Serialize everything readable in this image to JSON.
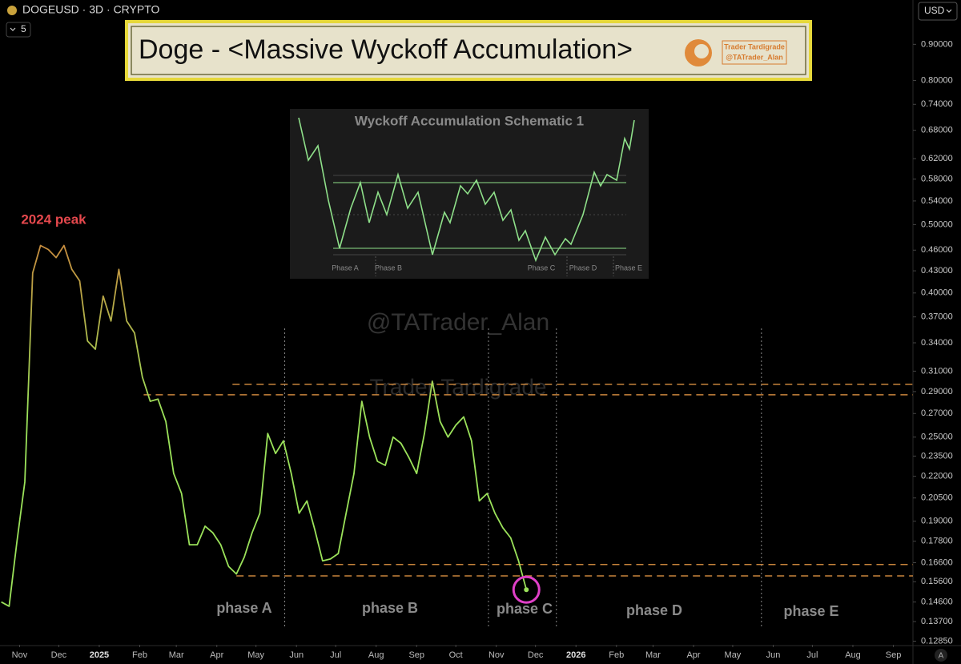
{
  "header": {
    "symbol": "DOGEUSD · 3D · CRYPTO",
    "interval_count": "5",
    "currency": "USD",
    "scale_mode": "A"
  },
  "banner": {
    "title": "Doge - <Massive Wyckoff Accumulation>",
    "brand": "Trader Tardigrade",
    "handle": "@TATrader_Alan"
  },
  "watermarks": [
    "@TATrader_Alan",
    "Trader Tardigrade"
  ],
  "inset": {
    "title": "Wyckoff Accumulation Schematic 1",
    "phases": [
      "Phase A",
      "Phase B",
      "Phase C",
      "Phase D",
      "Phase E"
    ]
  },
  "chart_data": {
    "type": "line",
    "log_scale": true,
    "grid": false,
    "xlim": [
      "2024-10-17",
      "2026-09-16"
    ],
    "xticks": [
      {
        "value": "2024-11-01",
        "label": "Nov"
      },
      {
        "value": "2024-12-01",
        "label": "Dec"
      },
      {
        "value": "2025-01-01",
        "label": "2025"
      },
      {
        "value": "2025-02-01",
        "label": "Feb"
      },
      {
        "value": "2025-03-01",
        "label": "Mar"
      },
      {
        "value": "2025-04-01",
        "label": "Apr"
      },
      {
        "value": "2025-05-01",
        "label": "May"
      },
      {
        "value": "2025-06-01",
        "label": "Jun"
      },
      {
        "value": "2025-07-01",
        "label": "Jul"
      },
      {
        "value": "2025-08-01",
        "label": "Aug"
      },
      {
        "value": "2025-09-01",
        "label": "Sep"
      },
      {
        "value": "2025-10-01",
        "label": "Oct"
      },
      {
        "value": "2025-11-01",
        "label": "Nov"
      },
      {
        "value": "2025-12-01",
        "label": "Dec"
      },
      {
        "value": "2026-01-01",
        "label": "2026"
      },
      {
        "value": "2026-02-01",
        "label": "Feb"
      },
      {
        "value": "2026-03-01",
        "label": "Mar"
      },
      {
        "value": "2026-04-01",
        "label": "Apr"
      },
      {
        "value": "2026-05-01",
        "label": "May"
      },
      {
        "value": "2026-06-01",
        "label": "Jun"
      },
      {
        "value": "2026-07-01",
        "label": "Jul"
      },
      {
        "value": "2026-08-01",
        "label": "Aug"
      },
      {
        "value": "2026-09-01",
        "label": "Sep"
      }
    ],
    "ylim": [
      0.127,
      1.04
    ],
    "yticks": [
      {
        "value": 0.9,
        "label": "0.90000"
      },
      {
        "value": 0.8,
        "label": "0.80000"
      },
      {
        "value": 0.74,
        "label": "0.74000"
      },
      {
        "value": 0.68,
        "label": "0.68000"
      },
      {
        "value": 0.62,
        "label": "0.62000"
      },
      {
        "value": 0.58,
        "label": "0.58000"
      },
      {
        "value": 0.54,
        "label": "0.54000"
      },
      {
        "value": 0.5,
        "label": "0.50000"
      },
      {
        "value": 0.46,
        "label": "0.46000"
      },
      {
        "value": 0.43,
        "label": "0.43000"
      },
      {
        "value": 0.4,
        "label": "0.40000"
      },
      {
        "value": 0.37,
        "label": "0.37000"
      },
      {
        "value": 0.34,
        "label": "0.34000"
      },
      {
        "value": 0.31,
        "label": "0.31000"
      },
      {
        "value": 0.29,
        "label": "0.29000"
      },
      {
        "value": 0.27,
        "label": "0.27000"
      },
      {
        "value": 0.25,
        "label": "0.25000"
      },
      {
        "value": 0.235,
        "label": "0.23500"
      },
      {
        "value": 0.22,
        "label": "0.22000"
      },
      {
        "value": 0.205,
        "label": "0.20500"
      },
      {
        "value": 0.19,
        "label": "0.19000"
      },
      {
        "value": 0.178,
        "label": "0.17800"
      },
      {
        "value": 0.166,
        "label": "0.16600"
      },
      {
        "value": 0.156,
        "label": "0.15600"
      },
      {
        "value": 0.146,
        "label": "0.14600"
      },
      {
        "value": 0.137,
        "label": "0.13700"
      },
      {
        "value": 0.1285,
        "label": "0.12850"
      }
    ],
    "series": [
      {
        "colors": [
          "#c9853c",
          "#9be25a"
        ],
        "x": [
          "2024-10-18",
          "2024-10-24",
          "2024-10-30",
          "2024-11-05",
          "2024-11-11",
          "2024-11-17",
          "2024-11-23",
          "2024-11-29",
          "2024-12-05",
          "2024-12-11",
          "2024-12-17",
          "2024-12-23",
          "2024-12-29",
          "2025-01-04",
          "2025-01-10",
          "2025-01-16",
          "2025-01-22",
          "2025-01-28",
          "2025-02-03",
          "2025-02-09",
          "2025-02-15",
          "2025-02-21",
          "2025-02-27",
          "2025-03-05",
          "2025-03-11",
          "2025-03-17",
          "2025-03-23",
          "2025-03-29",
          "2025-04-04",
          "2025-04-10",
          "2025-04-16",
          "2025-04-22",
          "2025-04-28",
          "2025-05-04",
          "2025-05-10",
          "2025-05-16",
          "2025-05-22",
          "2025-05-28",
          "2025-06-03",
          "2025-06-09",
          "2025-06-15",
          "2025-06-21",
          "2025-06-27",
          "2025-07-03",
          "2025-07-09",
          "2025-07-15",
          "2025-07-21",
          "2025-07-27",
          "2025-08-02",
          "2025-08-08",
          "2025-08-14",
          "2025-08-20",
          "2025-08-26",
          "2025-09-01",
          "2025-09-07",
          "2025-09-13",
          "2025-09-19",
          "2025-09-25",
          "2025-10-01",
          "2025-10-07",
          "2025-10-13",
          "2025-10-19",
          "2025-10-25",
          "2025-10-31",
          "2025-11-06",
          "2025-11-12",
          "2025-11-18",
          "2025-11-24"
        ],
        "values": [
          0.146,
          0.144,
          0.178,
          0.216,
          0.427,
          0.467,
          0.461,
          0.449,
          0.467,
          0.432,
          0.416,
          0.342,
          0.333,
          0.396,
          0.365,
          0.432,
          0.365,
          0.351,
          0.304,
          0.281,
          0.283,
          0.263,
          0.222,
          0.208,
          0.176,
          0.176,
          0.187,
          0.183,
          0.176,
          0.164,
          0.16,
          0.169,
          0.183,
          0.195,
          0.253,
          0.237,
          0.247,
          0.222,
          0.195,
          0.203,
          0.185,
          0.167,
          0.168,
          0.171,
          0.195,
          0.222,
          0.281,
          0.25,
          0.231,
          0.228,
          0.25,
          0.245,
          0.234,
          0.222,
          0.253,
          0.3,
          0.263,
          0.25,
          0.26,
          0.267,
          0.247,
          0.203,
          0.208,
          0.195,
          0.186,
          0.18,
          0.167,
          0.152
        ]
      }
    ],
    "levels": [
      {
        "value": 0.297,
        "from": "2025-04-13",
        "color": "#c9853c"
      },
      {
        "value": 0.287,
        "from": "2025-02-04",
        "color": "#c9853c"
      },
      {
        "value": 0.165,
        "from": "2025-06-22",
        "color": "#c9853c"
      },
      {
        "value": 0.159,
        "from": "2025-04-16",
        "color": "#c9853c"
      }
    ],
    "phase_dividers": [
      "2025-05-23",
      "2025-10-26",
      "2025-12-17",
      "2026-05-23"
    ],
    "phases": [
      "phase A",
      "phase B",
      "phase C",
      "phase D",
      "phase E"
    ],
    "annotations": [
      {
        "text": "2024 peak",
        "color": "#e5484d"
      }
    ],
    "highlight_color": "#e040c8"
  }
}
